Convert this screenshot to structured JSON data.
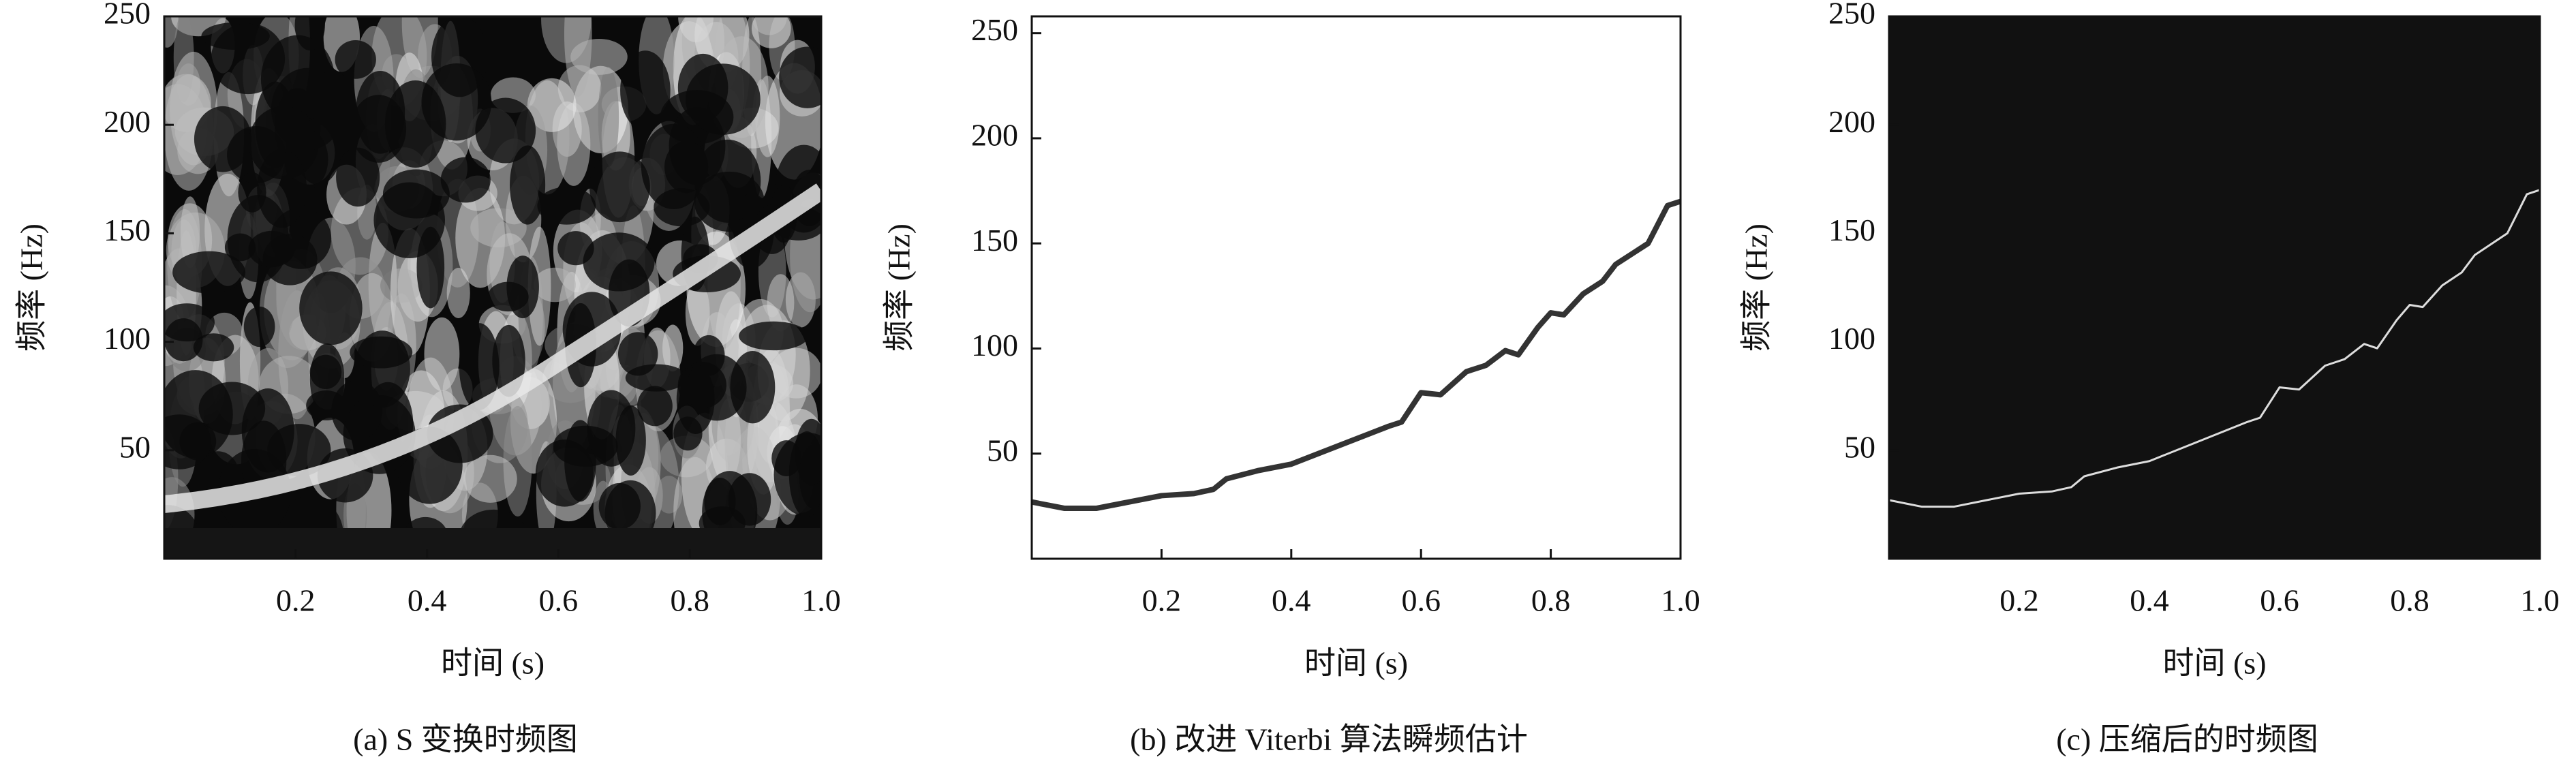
{
  "chart_data": [
    {
      "type": "heatmap",
      "caption": "(a) S 变换时频图",
      "xlabel": "时间 (s)",
      "ylabel": "频率 (Hz)",
      "xlim": [
        0,
        1
      ],
      "ylim": [
        0,
        250
      ],
      "xticks": [
        0.2,
        0.4,
        0.6,
        0.8,
        {
          "value": 1,
          "label": "1.0"
        }
      ],
      "yticks": [
        50,
        100,
        150,
        200,
        250
      ]
    },
    {
      "type": "line",
      "caption": "(b) 改进 Viterbi 算法瞬频估计",
      "xlabel": "时间 (s)",
      "ylabel": "频率 (Hz)",
      "xlim": [
        0,
        1
      ],
      "ylim": [
        0,
        258
      ],
      "background": "#ffffff",
      "color": "#333333",
      "xticks": [
        0.2,
        0.4,
        0.6,
        0.8,
        {
          "value": 1,
          "label": "1.0"
        }
      ],
      "yticks": [
        50,
        100,
        150,
        200,
        250
      ],
      "x": [
        0,
        0.05,
        0.1,
        0.15,
        0.2,
        0.25,
        0.28,
        0.3,
        0.35,
        0.4,
        0.45,
        0.5,
        0.55,
        0.57,
        0.6,
        0.63,
        0.67,
        0.7,
        0.73,
        0.75,
        0.78,
        0.8,
        0.82,
        0.85,
        0.88,
        0.9,
        0.93,
        0.95,
        0.97,
        0.98,
        1.0
      ],
      "values": [
        27,
        24,
        24,
        27,
        30,
        31,
        33,
        38,
        42,
        45,
        51,
        57,
        63,
        65,
        79,
        78,
        89,
        92,
        99,
        97,
        110,
        117,
        116,
        126,
        132,
        140,
        146,
        150,
        162,
        168,
        170
      ]
    },
    {
      "type": "line",
      "caption": "(c) 压缩后的时频图",
      "xlabel": "时间 (s)",
      "ylabel": "频率 (Hz)",
      "xlim": [
        0,
        1
      ],
      "ylim": [
        0,
        250
      ],
      "background": "#111111",
      "color": "#dddddd",
      "xticks": [
        0.2,
        0.4,
        0.6,
        0.8,
        {
          "value": 1,
          "label": "1.0"
        }
      ],
      "yticks": [
        50,
        100,
        150,
        200,
        250
      ],
      "x": [
        0,
        0.05,
        0.1,
        0.15,
        0.2,
        0.25,
        0.28,
        0.3,
        0.35,
        0.4,
        0.45,
        0.5,
        0.55,
        0.57,
        0.6,
        0.63,
        0.67,
        0.7,
        0.73,
        0.75,
        0.78,
        0.8,
        0.82,
        0.85,
        0.88,
        0.9,
        0.93,
        0.95,
        0.97,
        0.98,
        1.0
      ],
      "values": [
        27,
        24,
        24,
        27,
        30,
        31,
        33,
        38,
        42,
        45,
        51,
        57,
        63,
        65,
        79,
        78,
        89,
        92,
        99,
        97,
        110,
        117,
        116,
        126,
        132,
        140,
        146,
        150,
        162,
        168,
        170
      ]
    }
  ]
}
